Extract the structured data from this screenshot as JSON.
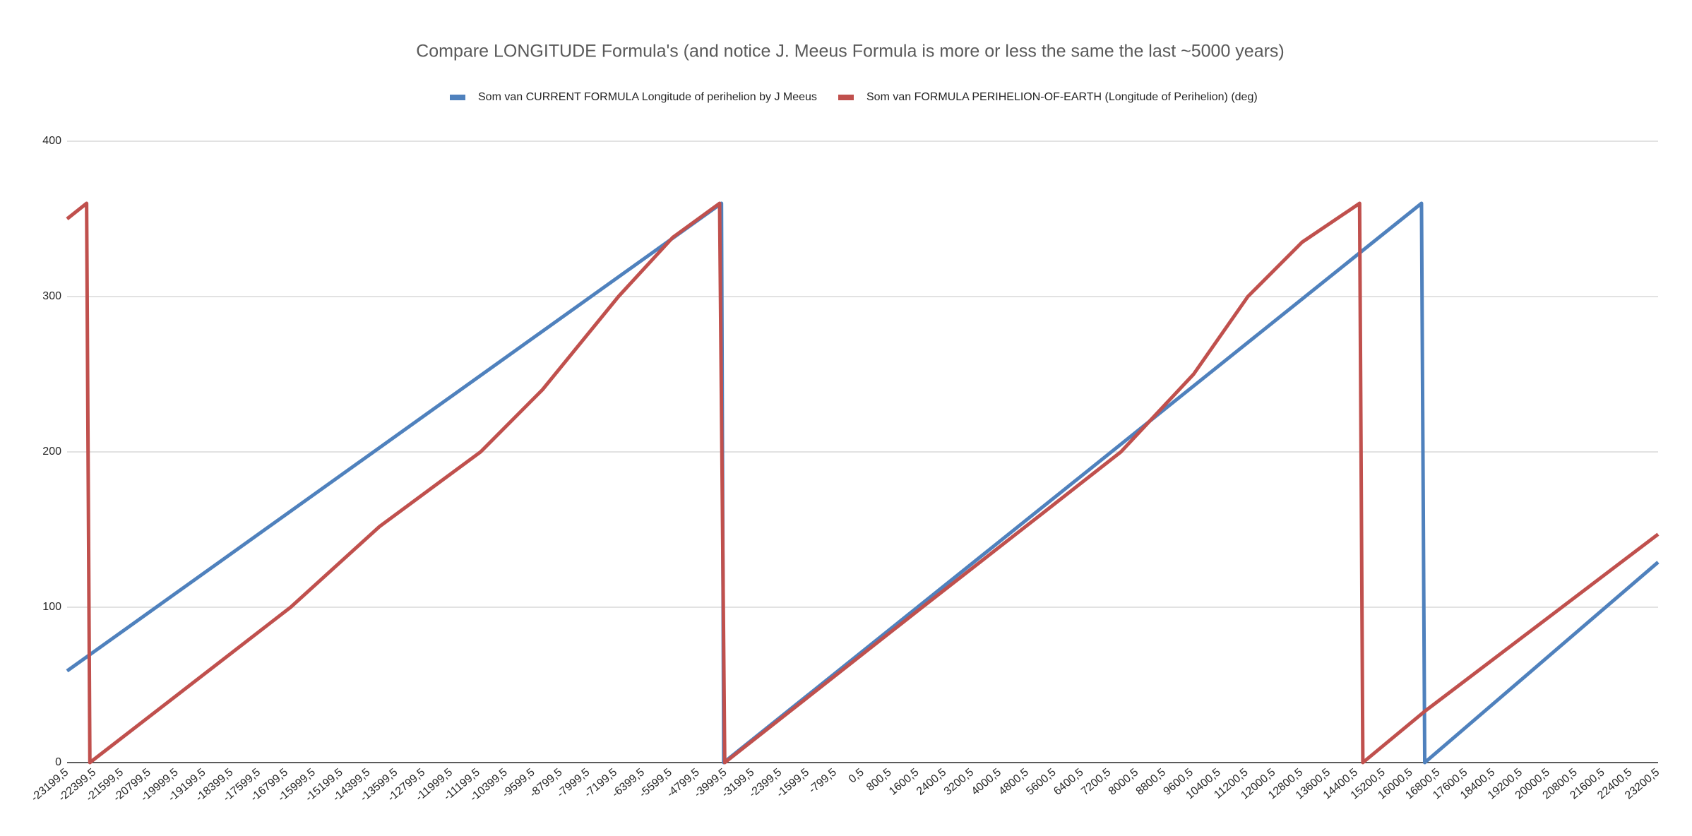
{
  "chart_data": {
    "type": "line",
    "title": "Compare LONGITUDE Formula's (and notice J. Meeus Formula is more or less the same the last ~5000 years)",
    "series": [
      {
        "name": "Som van CURRENT FORMULA Longitude of perihelion by J Meeus",
        "color": "#4f81bd",
        "x": [
          -23199.5,
          -4115,
          -4050,
          16300,
          16395,
          23200.5
        ],
        "values": [
          59,
          360,
          0,
          360,
          0,
          129
        ]
      },
      {
        "name": "Som van FORMULA PERIHELION-OF-EARTH (Longitude of Perihelion) (deg)",
        "color": "#c0504d",
        "x": [
          -23199.5,
          -22630,
          -22535,
          -16680,
          -14085,
          -11140,
          -9337,
          -7120,
          -5539,
          -4170,
          -4020,
          1740,
          5222,
          7533,
          9653,
          11236,
          12818,
          14495,
          14590,
          16395,
          23200.5
        ],
        "values": [
          350,
          360,
          0,
          100,
          152,
          200,
          240,
          300,
          338,
          360,
          0,
          100,
          160,
          200,
          250,
          300,
          335,
          360,
          0,
          33,
          147
        ]
      }
    ],
    "xlim": [
      -23199.5,
      23200.5
    ],
    "xticks": [
      {
        "value": -23199.5,
        "label": "-23199,5"
      },
      {
        "value": -22399.5,
        "label": "-22399,5"
      },
      {
        "value": -21599.5,
        "label": "-21599,5"
      },
      {
        "value": -20799.5,
        "label": "-20799,5"
      },
      {
        "value": -19999.5,
        "label": "-19999,5"
      },
      {
        "value": -19199.5,
        "label": "-19199,5"
      },
      {
        "value": -18399.5,
        "label": "-18399,5"
      },
      {
        "value": -17599.5,
        "label": "-17599,5"
      },
      {
        "value": -16799.5,
        "label": "-16799,5"
      },
      {
        "value": -15999.5,
        "label": "-15999,5"
      },
      {
        "value": -15199.5,
        "label": "-15199,5"
      },
      {
        "value": -14399.5,
        "label": "-14399,5"
      },
      {
        "value": -13599.5,
        "label": "-13599,5"
      },
      {
        "value": -12799.5,
        "label": "-12799,5"
      },
      {
        "value": -11999.5,
        "label": "-11999,5"
      },
      {
        "value": -11199.5,
        "label": "-11199,5"
      },
      {
        "value": -10399.5,
        "label": "-10399,5"
      },
      {
        "value": -9599.5,
        "label": "-9599,5"
      },
      {
        "value": -8799.5,
        "label": "-8799,5"
      },
      {
        "value": -7999.5,
        "label": "-7999,5"
      },
      {
        "value": -7199.5,
        "label": "-7199,5"
      },
      {
        "value": -6399.5,
        "label": "-6399,5"
      },
      {
        "value": -5599.5,
        "label": "-5599,5"
      },
      {
        "value": -4799.5,
        "label": "-4799,5"
      },
      {
        "value": -3999.5,
        "label": "-3999,5"
      },
      {
        "value": -3199.5,
        "label": "-3199,5"
      },
      {
        "value": -2399.5,
        "label": "-2399,5"
      },
      {
        "value": -1599.5,
        "label": "-1599,5"
      },
      {
        "value": -799.5,
        "label": "-799,5"
      },
      {
        "value": 0.5,
        "label": "0,5"
      },
      {
        "value": 800.5,
        "label": "800,5"
      },
      {
        "value": 1600.5,
        "label": "1600,5"
      },
      {
        "value": 2400.5,
        "label": "2400,5"
      },
      {
        "value": 3200.5,
        "label": "3200,5"
      },
      {
        "value": 4000.5,
        "label": "4000,5"
      },
      {
        "value": 4800.5,
        "label": "4800,5"
      },
      {
        "value": 5600.5,
        "label": "5600,5"
      },
      {
        "value": 6400.5,
        "label": "6400,5"
      },
      {
        "value": 7200.5,
        "label": "7200,5"
      },
      {
        "value": 8000.5,
        "label": "8000,5"
      },
      {
        "value": 8800.5,
        "label": "8800,5"
      },
      {
        "value": 9600.5,
        "label": "9600,5"
      },
      {
        "value": 10400.5,
        "label": "10400,5"
      },
      {
        "value": 11200.5,
        "label": "11200,5"
      },
      {
        "value": 12000.5,
        "label": "12000,5"
      },
      {
        "value": 12800.5,
        "label": "12800,5"
      },
      {
        "value": 13600.5,
        "label": "13600,5"
      },
      {
        "value": 14400.5,
        "label": "14400,5"
      },
      {
        "value": 15200.5,
        "label": "15200,5"
      },
      {
        "value": 16000.5,
        "label": "16000,5"
      },
      {
        "value": 16800.5,
        "label": "16800,5"
      },
      {
        "value": 17600.5,
        "label": "17600,5"
      },
      {
        "value": 18400.5,
        "label": "18400,5"
      },
      {
        "value": 19200.5,
        "label": "19200,5"
      },
      {
        "value": 20000.5,
        "label": "20000,5"
      },
      {
        "value": 20800.5,
        "label": "20800,5"
      },
      {
        "value": 21600.5,
        "label": "21600,5"
      },
      {
        "value": 22400.5,
        "label": "22400,5"
      },
      {
        "value": 23200.5,
        "label": "23200,5"
      }
    ],
    "ylim": [
      0,
      400
    ],
    "yticks": [
      0,
      100,
      200,
      300,
      400
    ],
    "grid": true,
    "legend": "top"
  }
}
